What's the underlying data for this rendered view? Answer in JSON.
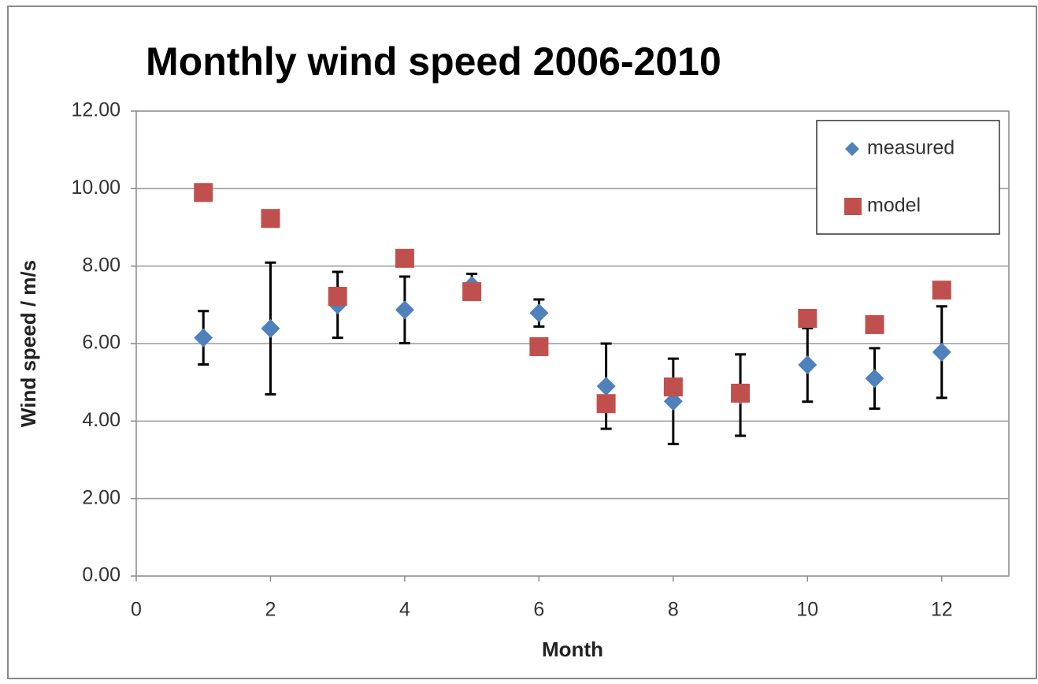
{
  "chart_data": {
    "type": "scatter",
    "title": "Monthly wind speed 2006-2010",
    "x_label": "Month",
    "y_label": "Wind speed / m/s",
    "x": [
      1,
      2,
      3,
      4,
      5,
      6,
      7,
      8,
      9,
      10,
      11,
      12
    ],
    "series": [
      {
        "name": "measured",
        "color": "#4f81bd",
        "marker": "diamond",
        "values": [
          6.15,
          6.39,
          7.0,
          6.87,
          7.5,
          6.79,
          4.9,
          4.51,
          4.67,
          5.45,
          5.1,
          5.78
        ],
        "errors": [
          0.69,
          1.7,
          0.85,
          0.86,
          0.3,
          0.35,
          1.1,
          1.1,
          1.05,
          0.95,
          0.78,
          1.18
        ]
      },
      {
        "name": "model",
        "color": "#c0504d",
        "marker": "square",
        "values": [
          9.9,
          9.23,
          7.22,
          8.2,
          7.34,
          5.92,
          4.45,
          4.88,
          4.72,
          6.65,
          6.49,
          7.38
        ]
      }
    ],
    "xlim": [
      0,
      13
    ],
    "xticks": [
      0,
      2,
      4,
      6,
      8,
      10,
      12
    ],
    "ylim": [
      0,
      12
    ],
    "yticks": [
      {
        "value": 0,
        "label": "0.00"
      },
      {
        "value": 2,
        "label": "2.00"
      },
      {
        "value": 4,
        "label": "4.00"
      },
      {
        "value": 6,
        "label": "6.00"
      },
      {
        "value": 8,
        "label": "8.00"
      },
      {
        "value": 10,
        "label": "10.00"
      },
      {
        "value": 12,
        "label": "12.00"
      }
    ],
    "grid": true,
    "legend": "upper right"
  }
}
